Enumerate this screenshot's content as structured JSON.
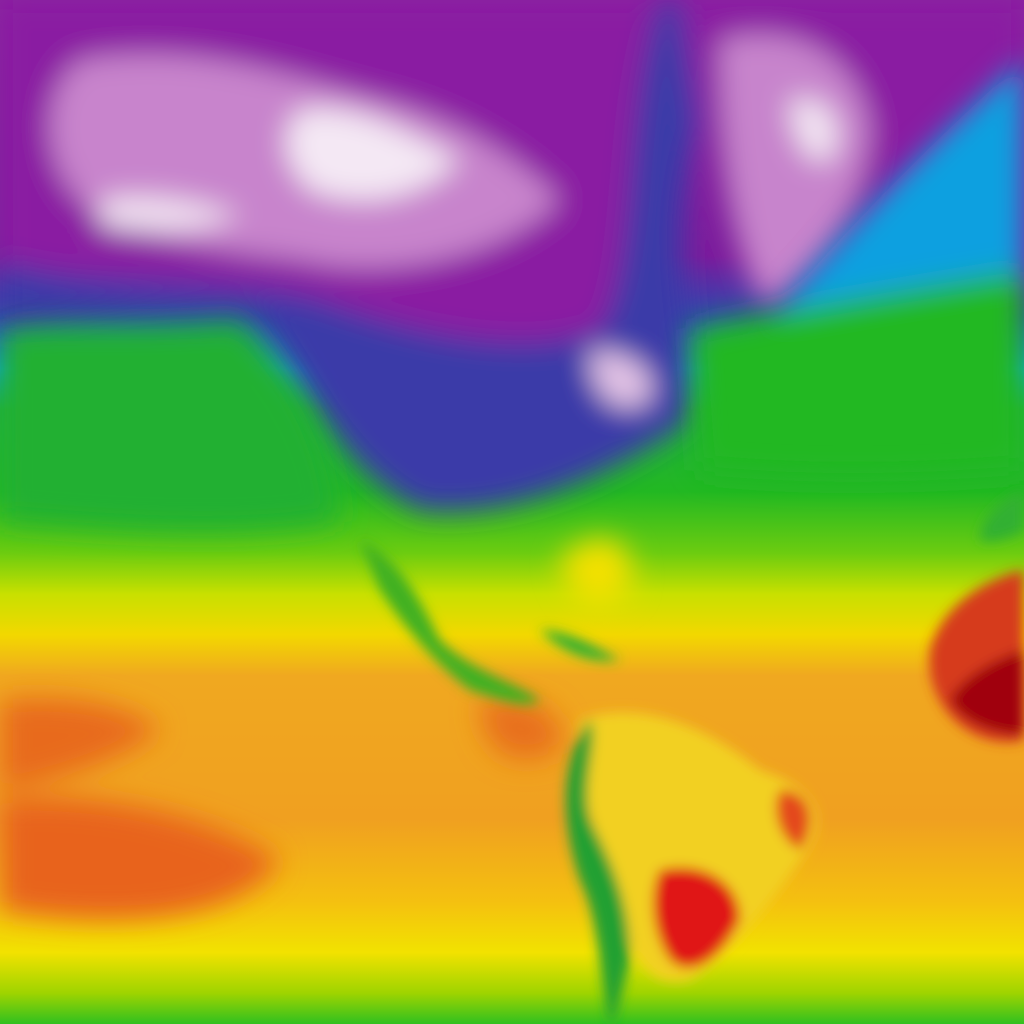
{
  "map": {
    "type": "temperature-heatmap",
    "region": "americas-atlantic",
    "palette": {
      "coldest": "#f4eef6",
      "very_cold": "#d69ad6",
      "cold_purple": "#8c1aa0",
      "cold_blue": "#2e3fa8",
      "cool": "#0aa0e0",
      "mild": "#22b822",
      "warm_green": "#8ed400",
      "warm_yellow": "#f4e400",
      "hot": "#f0a020",
      "very_hot": "#e85a1e",
      "hottest": "#a00010"
    }
  }
}
